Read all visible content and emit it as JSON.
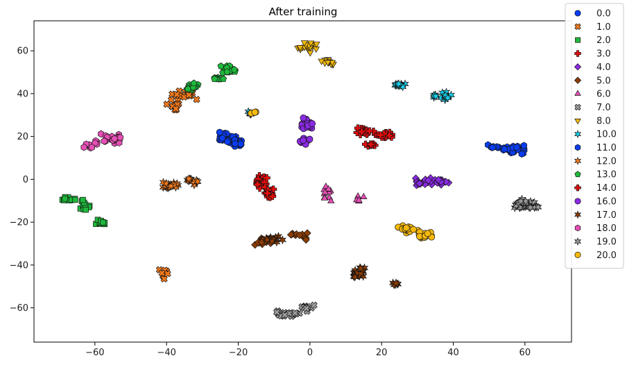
{
  "chart_data": {
    "type": "scatter",
    "title": "After training",
    "xlabel": "",
    "ylabel": "",
    "xlim": [
      -77,
      73
    ],
    "ylim": [
      -76,
      74
    ],
    "xticks": [
      -60,
      -40,
      -20,
      0,
      20,
      40,
      60
    ],
    "yticks": [
      -60,
      -40,
      -20,
      0,
      20,
      40,
      60
    ],
    "grid": false,
    "legend": "upper-right-outside",
    "series": [
      {
        "name": "0.0",
        "color": "#0a3df0",
        "marker": "circle",
        "clusters": [
          [
            -24,
            20,
            3,
            2,
            20
          ],
          [
            -20,
            17,
            2,
            2,
            14
          ]
        ]
      },
      {
        "name": "1.0",
        "color": "#f57a1c",
        "marker": "x",
        "clusters": [
          [
            -34,
            40,
            3,
            3,
            14
          ],
          [
            -38,
            36,
            2,
            4,
            14
          ],
          [
            -40,
            -44,
            2,
            3,
            8
          ]
        ]
      },
      {
        "name": "2.0",
        "color": "#1fb83c",
        "marker": "square",
        "clusters": [
          [
            -68,
            -9,
            2,
            2,
            10
          ],
          [
            -63,
            -12,
            3,
            3,
            12
          ],
          [
            -58,
            -21,
            2,
            2,
            10
          ]
        ]
      },
      {
        "name": "3.0",
        "color": "#e60d0d",
        "marker": "plus",
        "clusters": [
          [
            -14,
            -1,
            2,
            3,
            18
          ],
          [
            -11,
            -6,
            2,
            2,
            14
          ]
        ]
      },
      {
        "name": "4.0",
        "color": "#8a2be2",
        "marker": "diamond",
        "clusters": [
          [
            31,
            -1,
            3,
            2,
            18
          ],
          [
            36,
            -1,
            3,
            2,
            16
          ]
        ]
      },
      {
        "name": "5.0",
        "color": "#8b3d06",
        "marker": "diamond",
        "clusters": [
          [
            -13,
            -29,
            3,
            2,
            14
          ],
          [
            -3,
            -26,
            3,
            2,
            12
          ]
        ]
      },
      {
        "name": "6.0",
        "color": "#e650b5",
        "marker": "triangle",
        "clusters": [
          [
            5,
            -6,
            2,
            4,
            16
          ],
          [
            14,
            -9,
            2,
            2,
            5
          ]
        ]
      },
      {
        "name": "7.0",
        "color": "#9a9a9a",
        "marker": "x",
        "clusters": [
          [
            -7,
            -63,
            4,
            2,
            20
          ],
          [
            -1,
            -60,
            2,
            2,
            8
          ]
        ]
      },
      {
        "name": "8.0",
        "color": "#f2b80c",
        "marker": "triangle-down",
        "clusters": [
          [
            0,
            62,
            3,
            3,
            22
          ],
          [
            5,
            55,
            2,
            2,
            12
          ]
        ]
      },
      {
        "name": "10.0",
        "color": "#17d2ec",
        "marker": "star",
        "clusters": [
          [
            25,
            44,
            2,
            1,
            12
          ],
          [
            37,
            39,
            3,
            2,
            16
          ],
          [
            -17,
            31,
            1,
            1,
            4
          ]
        ]
      },
      {
        "name": "11.0",
        "color": "#0a3df0",
        "marker": "hexagon",
        "clusters": [
          [
            -22,
            18,
            3,
            2,
            24
          ],
          [
            57,
            14,
            4,
            2,
            30
          ],
          [
            51,
            15,
            2,
            1,
            10
          ]
        ]
      },
      {
        "name": "12.0",
        "color": "#f57a1c",
        "marker": "star",
        "clusters": [
          [
            -39,
            -3,
            3,
            2,
            18
          ],
          [
            -33,
            -1,
            2,
            2,
            14
          ]
        ]
      },
      {
        "name": "13.0",
        "color": "#1fb83c",
        "marker": "pentagon",
        "clusters": [
          [
            -33,
            43,
            2,
            2,
            14
          ],
          [
            -23,
            51,
            3,
            2,
            18
          ],
          [
            -26,
            47,
            2,
            1,
            8
          ]
        ]
      },
      {
        "name": "14.0",
        "color": "#e60d0d",
        "marker": "plus",
        "clusters": [
          [
            15,
            22,
            3,
            2,
            18
          ],
          [
            21,
            21,
            3,
            2,
            14
          ],
          [
            17,
            16,
            2,
            1,
            10
          ]
        ]
      },
      {
        "name": "16.0",
        "color": "#8a2be2",
        "marker": "circle",
        "clusters": [
          [
            -1,
            26,
            2,
            3,
            18
          ],
          [
            -1,
            18,
            2,
            2,
            14
          ]
        ]
      },
      {
        "name": "17.0",
        "color": "#8b3d06",
        "marker": "star",
        "clusters": [
          [
            -10,
            -28,
            3,
            2,
            12
          ],
          [
            14,
            -44,
            3,
            3,
            18
          ],
          [
            24,
            -49,
            1,
            1,
            6
          ]
        ]
      },
      {
        "name": "18.0",
        "color": "#e650b5",
        "marker": "hexagon",
        "clusters": [
          [
            -55,
            19,
            3,
            3,
            20
          ],
          [
            -61,
            16,
            2,
            2,
            10
          ]
        ]
      },
      {
        "name": "19.0",
        "color": "#9a9a9a",
        "marker": "star",
        "clusters": [
          [
            59,
            -12,
            3,
            3,
            24
          ],
          [
            63,
            -13,
            2,
            2,
            8
          ]
        ]
      },
      {
        "name": "20.0",
        "color": "#f5b80c",
        "marker": "circle",
        "clusters": [
          [
            27,
            -23,
            3,
            2,
            16
          ],
          [
            33,
            -26,
            3,
            2,
            16
          ],
          [
            -16,
            31,
            1,
            1,
            3
          ]
        ]
      }
    ]
  }
}
